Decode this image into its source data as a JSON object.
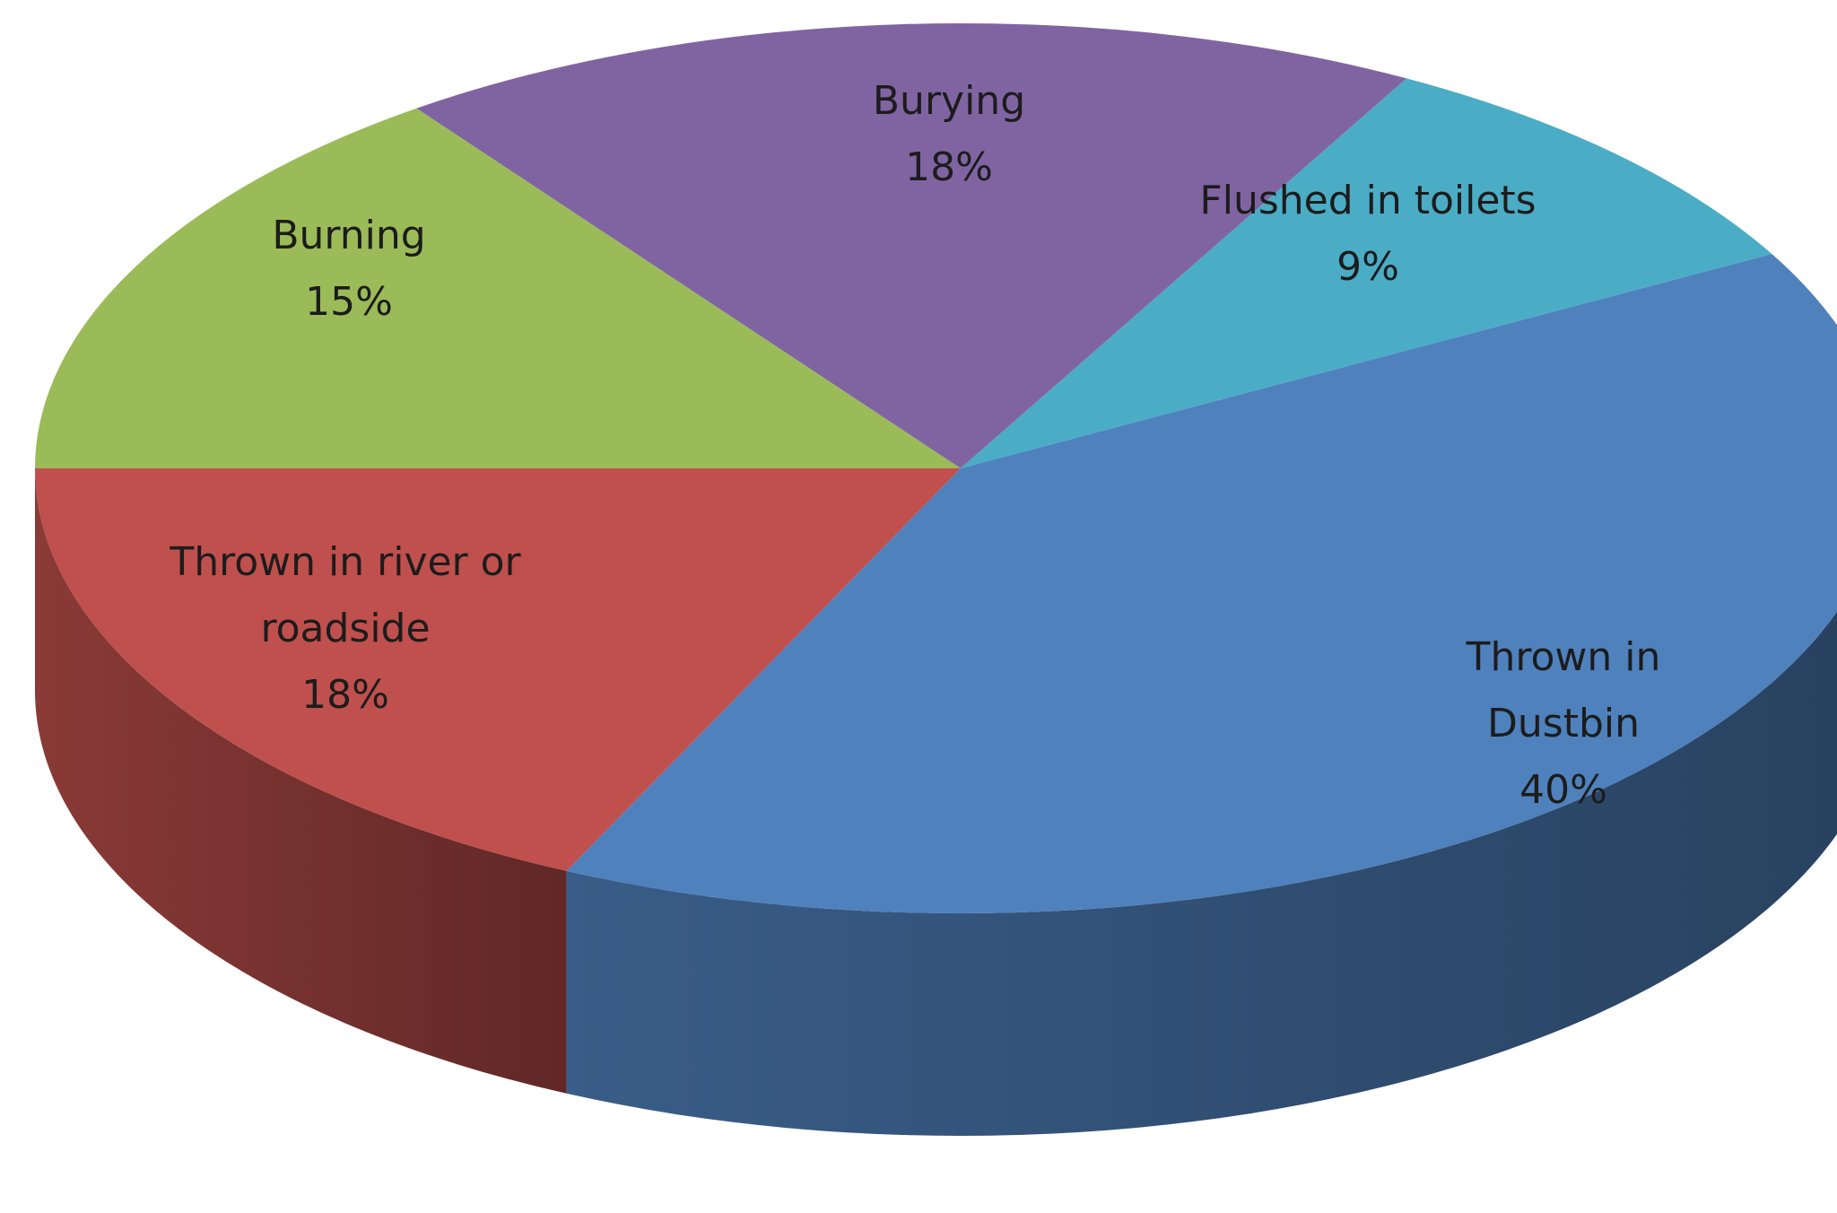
{
  "chart_data": {
    "type": "pie3d",
    "categories": [
      "Thrown in Dustbin",
      "Thrown in river or roadside",
      "Burning",
      "Burying",
      "Flushed in toilets"
    ],
    "values": [
      40,
      18,
      15,
      18,
      9
    ],
    "value_labels": [
      "40%",
      "18%",
      "15%",
      "18%",
      "9%"
    ],
    "colors": [
      "#4f81bd",
      "#c0504d",
      "#9bbb59",
      "#8064a2",
      "#4bacc6"
    ]
  }
}
